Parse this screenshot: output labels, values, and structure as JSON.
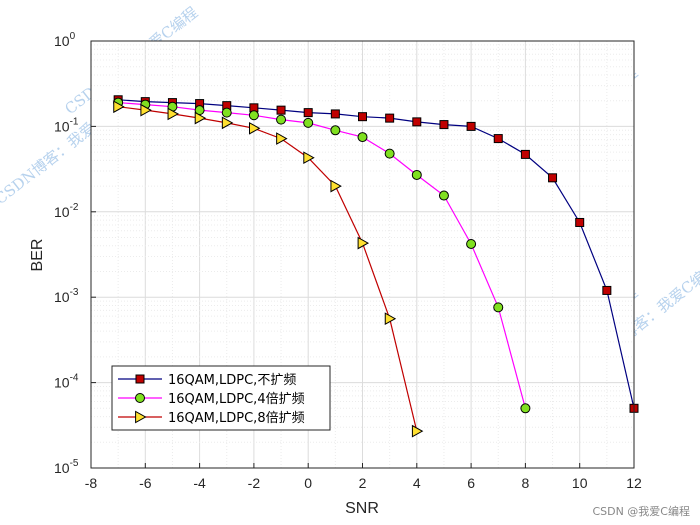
{
  "chart_data": {
    "type": "line",
    "xlabel": "SNR",
    "ylabel": "BER",
    "xlim": [
      -8,
      12
    ],
    "ylim": [
      1e-05,
      1
    ],
    "yscale": "log",
    "grid": true,
    "legend_position": "bottom-left",
    "x_ticks": [
      "-8",
      "-6",
      "-4",
      "-2",
      "0",
      "2",
      "4",
      "6",
      "8",
      "10",
      "12"
    ],
    "y_ticks": [
      {
        "base": "10",
        "exp": "0",
        "value": 1
      },
      {
        "base": "10",
        "exp": "-1",
        "value": 0.1
      },
      {
        "base": "10",
        "exp": "-2",
        "value": 0.01
      },
      {
        "base": "10",
        "exp": "-3",
        "value": 0.001
      },
      {
        "base": "10",
        "exp": "-4",
        "value": 0.0001
      },
      {
        "base": "10",
        "exp": "-5",
        "value": 1e-05
      }
    ],
    "series": [
      {
        "name": "16QAM,LDPC,不扩频",
        "line_color": "#000080",
        "marker": "square",
        "marker_fill": "#c00000",
        "x": [
          -7,
          -6,
          -5,
          -4,
          -3,
          -2,
          -1,
          0,
          1,
          2,
          3,
          4,
          5,
          6,
          7,
          8,
          9,
          10,
          11,
          12
        ],
        "y": [
          0.205,
          0.195,
          0.19,
          0.185,
          0.175,
          0.165,
          0.155,
          0.145,
          0.14,
          0.13,
          0.125,
          0.113,
          0.105,
          0.1,
          0.072,
          0.047,
          0.025,
          0.0075,
          0.0012,
          5e-05
        ]
      },
      {
        "name": "16QAM,LDPC,4倍扩频",
        "line_color": "#ff00ff",
        "marker": "circle",
        "marker_fill": "#80e020",
        "x": [
          -7,
          -6,
          -5,
          -4,
          -3,
          -2,
          -1,
          0,
          1,
          2,
          3,
          4,
          5,
          6,
          7,
          8
        ],
        "y": [
          0.19,
          0.18,
          0.17,
          0.155,
          0.145,
          0.135,
          0.12,
          0.11,
          0.09,
          0.075,
          0.048,
          0.027,
          0.0155,
          0.0042,
          0.00076,
          5e-05
        ]
      },
      {
        "name": "16QAM,LDPC,8倍扩频",
        "line_color": "#c00000",
        "marker": "triangle-right",
        "marker_fill": "#ffe030",
        "x": [
          -7,
          -6,
          -5,
          -4,
          -3,
          -2,
          -1,
          0,
          1,
          2,
          3,
          4
        ],
        "y": [
          0.17,
          0.155,
          0.14,
          0.125,
          0.11,
          0.095,
          0.072,
          0.043,
          0.02,
          0.0043,
          0.00056,
          2.7e-05
        ]
      }
    ]
  },
  "watermark": {
    "text": "CSDN博客：我爱C编程",
    "color": "#9fc3e8"
  },
  "credit": "CSDN @我爱C编程"
}
